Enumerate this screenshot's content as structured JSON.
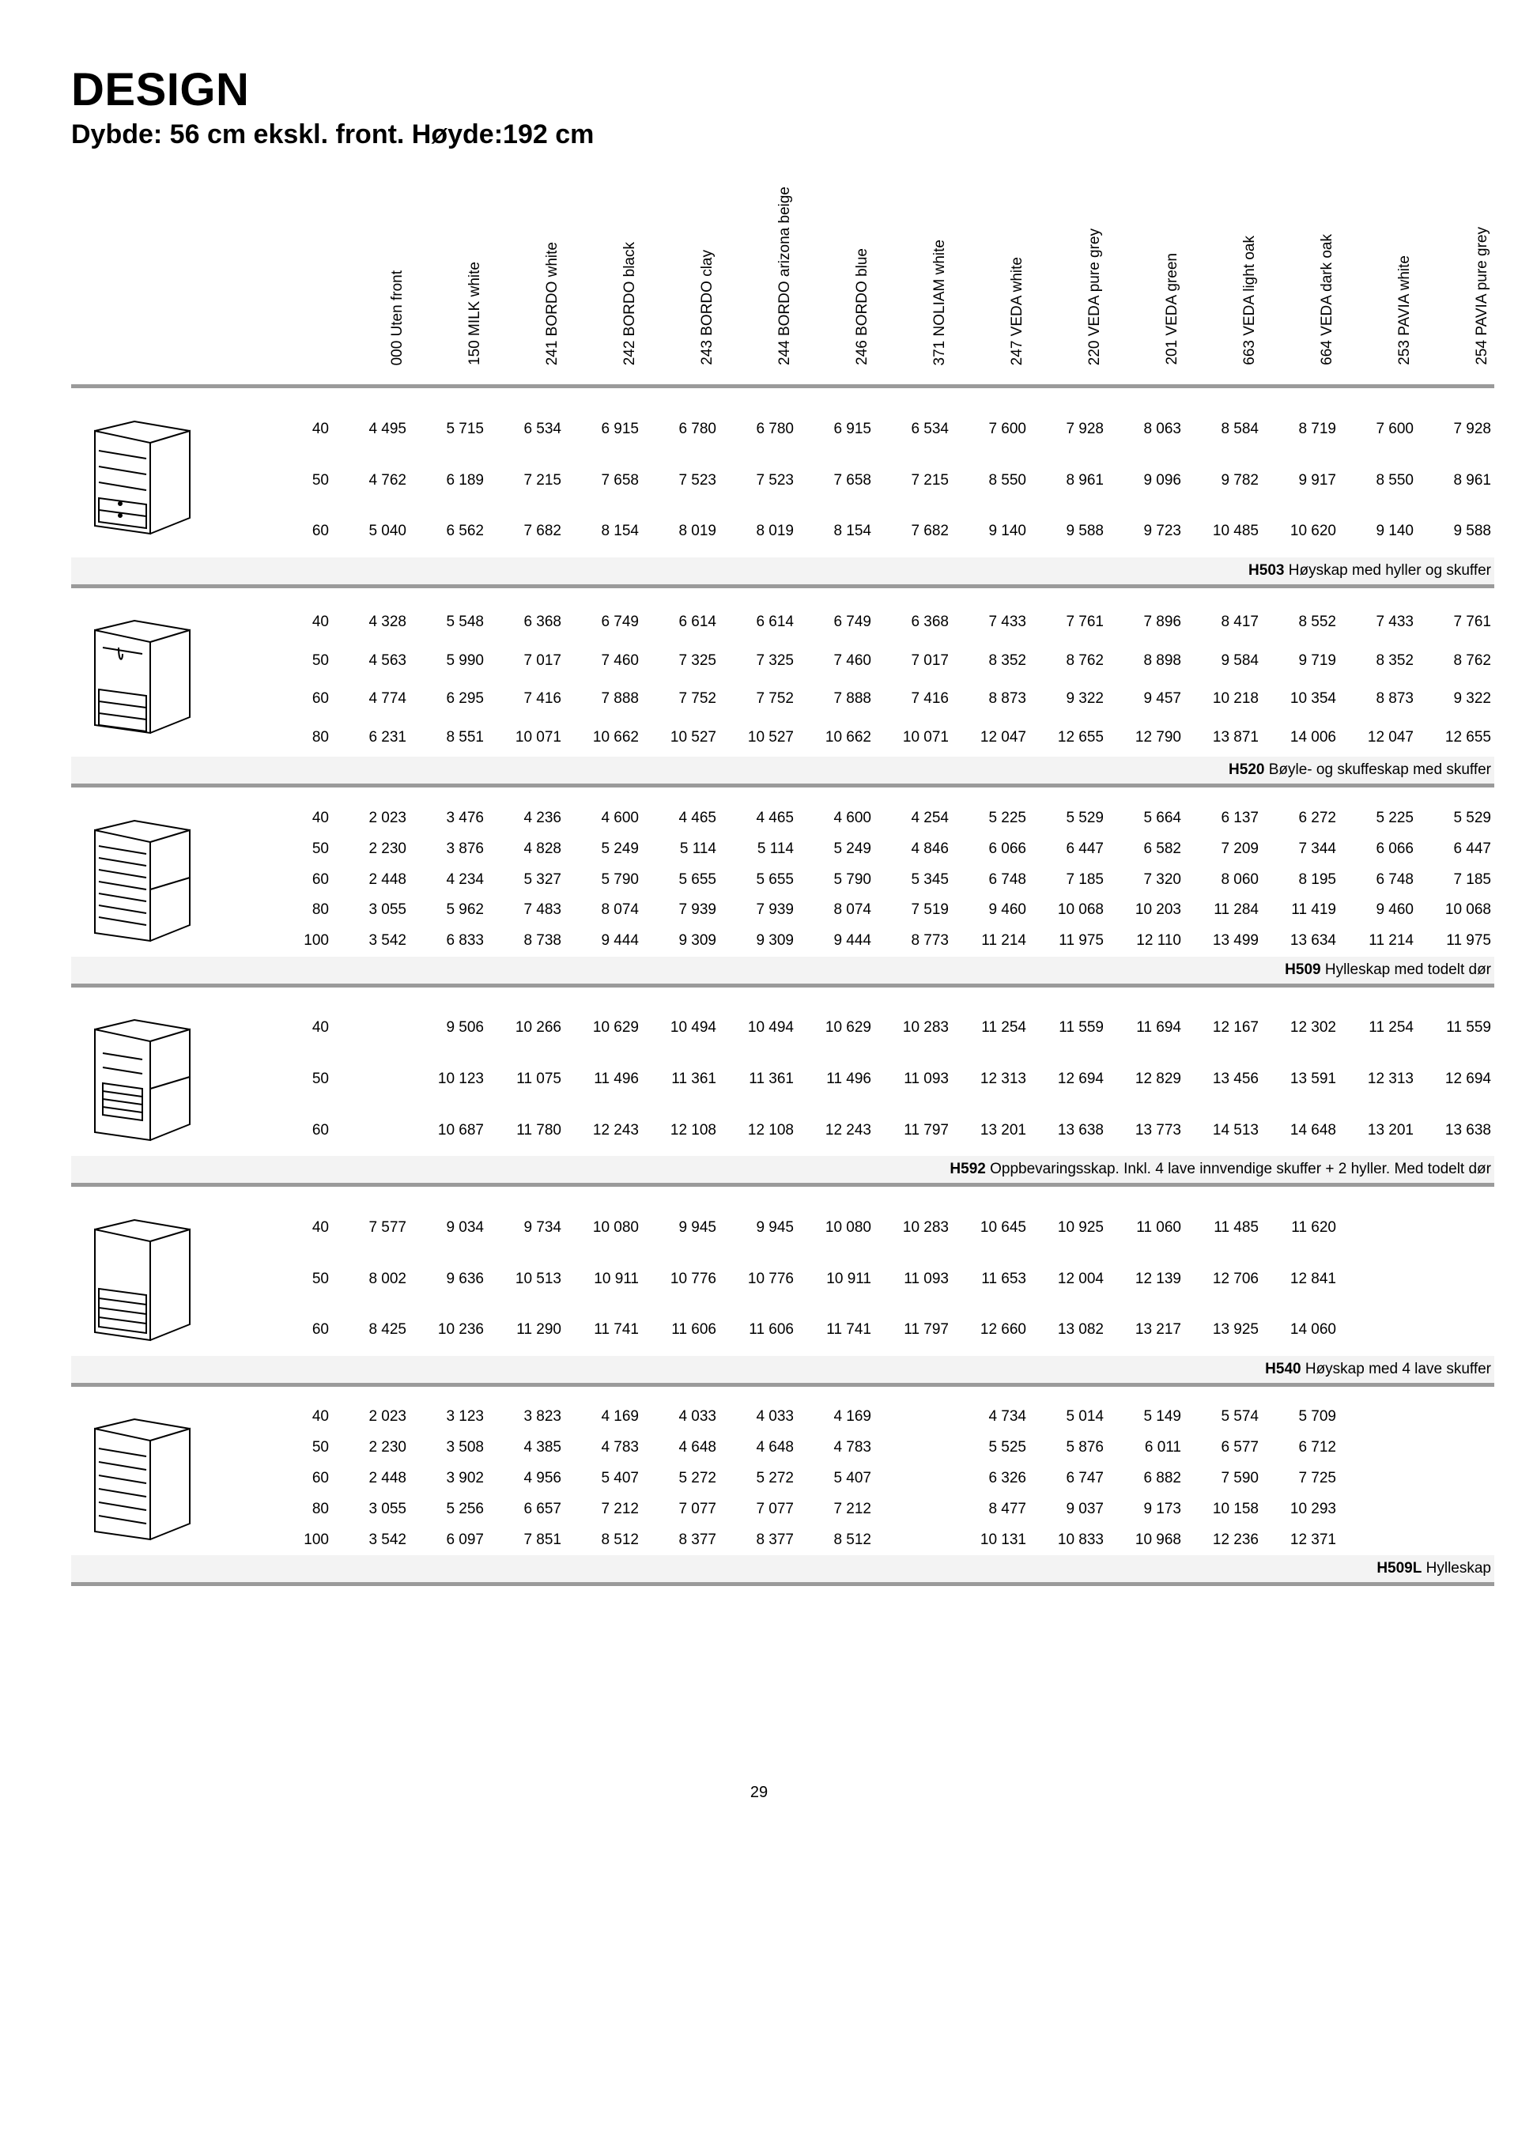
{
  "title": "DESIGN",
  "subtitle": "Dybde: 56 cm ekskl. front. Høyde:192 cm",
  "page_number": "29",
  "columns": [
    "000 Uten front",
    "150 MILK white",
    "241 BORDO white",
    "242 BORDO black",
    "243 BORDO clay",
    "244 BORDO\narizona beige",
    "246 BORDO blue",
    "371 NOLIAM white",
    "247 VEDA white",
    "220 VEDA pure grey",
    "201 VEDA green",
    "663 VEDA light oak",
    "664 VEDA dark oak",
    "253 PAVIA white",
    "254 PAVIA pure grey"
  ],
  "sections": [
    {
      "code": "H503",
      "desc": "Høyskap med hyller og skuffer",
      "icon": "h503",
      "rows": [
        {
          "s": "40",
          "v": [
            "4 495",
            "5 715",
            "6 534",
            "6 915",
            "6 780",
            "6 780",
            "6 915",
            "6 534",
            "7 600",
            "7 928",
            "8 063",
            "8 584",
            "8 719",
            "7 600",
            "7 928"
          ]
        },
        {
          "s": "50",
          "v": [
            "4 762",
            "6 189",
            "7 215",
            "7 658",
            "7 523",
            "7 523",
            "7 658",
            "7 215",
            "8 550",
            "8 961",
            "9 096",
            "9 782",
            "9 917",
            "8 550",
            "8 961"
          ]
        },
        {
          "s": "60",
          "v": [
            "5 040",
            "6 562",
            "7 682",
            "8 154",
            "8 019",
            "8 019",
            "8 154",
            "7 682",
            "9 140",
            "9 588",
            "9 723",
            "10 485",
            "10 620",
            "9 140",
            "9 588"
          ]
        }
      ]
    },
    {
      "code": "H520",
      "desc": "Bøyle- og skuffeskap med skuffer",
      "icon": "h520",
      "rows": [
        {
          "s": "40",
          "v": [
            "4 328",
            "5 548",
            "6 368",
            "6 749",
            "6 614",
            "6 614",
            "6 749",
            "6 368",
            "7 433",
            "7 761",
            "7 896",
            "8 417",
            "8 552",
            "7 433",
            "7 761"
          ]
        },
        {
          "s": "50",
          "v": [
            "4 563",
            "5 990",
            "7 017",
            "7 460",
            "7 325",
            "7 325",
            "7 460",
            "7 017",
            "8 352",
            "8 762",
            "8 898",
            "9 584",
            "9 719",
            "8 352",
            "8 762"
          ]
        },
        {
          "s": "60",
          "v": [
            "4 774",
            "6 295",
            "7 416",
            "7 888",
            "7 752",
            "7 752",
            "7 888",
            "7 416",
            "8 873",
            "9 322",
            "9 457",
            "10 218",
            "10 354",
            "8 873",
            "9 322"
          ]
        },
        {
          "s": "80",
          "v": [
            "6 231",
            "8 551",
            "10 071",
            "10 662",
            "10 527",
            "10 527",
            "10 662",
            "10 071",
            "12 047",
            "12 655",
            "12 790",
            "13 871",
            "14 006",
            "12 047",
            "12 655"
          ]
        }
      ]
    },
    {
      "code": "H509",
      "desc": "Hylleskap med todelt dør",
      "icon": "h509",
      "rows": [
        {
          "s": "40",
          "v": [
            "2 023",
            "3 476",
            "4 236",
            "4 600",
            "4 465",
            "4 465",
            "4 600",
            "4 254",
            "5 225",
            "5 529",
            "5 664",
            "6 137",
            "6 272",
            "5 225",
            "5 529"
          ]
        },
        {
          "s": "50",
          "v": [
            "2 230",
            "3 876",
            "4 828",
            "5 249",
            "5 114",
            "5 114",
            "5 249",
            "4 846",
            "6 066",
            "6 447",
            "6 582",
            "7 209",
            "7 344",
            "6 066",
            "6 447"
          ]
        },
        {
          "s": "60",
          "v": [
            "2 448",
            "4 234",
            "5 327",
            "5 790",
            "5 655",
            "5 655",
            "5 790",
            "5 345",
            "6 748",
            "7 185",
            "7 320",
            "8 060",
            "8 195",
            "6 748",
            "7 185"
          ]
        },
        {
          "s": "80",
          "v": [
            "3 055",
            "5 962",
            "7 483",
            "8 074",
            "7 939",
            "7 939",
            "8 074",
            "7 519",
            "9 460",
            "10 068",
            "10 203",
            "11 284",
            "11 419",
            "9 460",
            "10 068"
          ]
        },
        {
          "s": "100",
          "v": [
            "3 542",
            "6 833",
            "8 738",
            "9 444",
            "9 309",
            "9 309",
            "9 444",
            "8 773",
            "11 214",
            "11 975",
            "12 110",
            "13 499",
            "13 634",
            "11 214",
            "11 975"
          ]
        }
      ]
    },
    {
      "code": "H592",
      "desc": "Oppbevaringsskap. Inkl. 4 lave innvendige skuffer + 2 hyller. Med todelt dør",
      "icon": "h592",
      "rows": [
        {
          "s": "40",
          "v": [
            "",
            "9 506",
            "10 266",
            "10 629",
            "10 494",
            "10 494",
            "10 629",
            "10 283",
            "11 254",
            "11 559",
            "11 694",
            "12 167",
            "12 302",
            "11 254",
            "11 559"
          ]
        },
        {
          "s": "50",
          "v": [
            "",
            "10 123",
            "11 075",
            "11 496",
            "11 361",
            "11 361",
            "11 496",
            "11 093",
            "12 313",
            "12 694",
            "12 829",
            "13 456",
            "13 591",
            "12 313",
            "12 694"
          ]
        },
        {
          "s": "60",
          "v": [
            "",
            "10 687",
            "11 780",
            "12 243",
            "12 108",
            "12 108",
            "12 243",
            "11 797",
            "13 201",
            "13 638",
            "13 773",
            "14 513",
            "14 648",
            "13 201",
            "13 638"
          ]
        }
      ]
    },
    {
      "code": "H540",
      "desc": "Høyskap med 4 lave skuffer",
      "icon": "h540",
      "rows": [
        {
          "s": "40",
          "v": [
            "7 577",
            "9 034",
            "9 734",
            "10 080",
            "9 945",
            "9 945",
            "10 080",
            "10 283",
            "10 645",
            "10 925",
            "11 060",
            "11 485",
            "11 620",
            "",
            ""
          ]
        },
        {
          "s": "50",
          "v": [
            "8 002",
            "9 636",
            "10 513",
            "10 911",
            "10 776",
            "10 776",
            "10 911",
            "11 093",
            "11 653",
            "12 004",
            "12 139",
            "12 706",
            "12 841",
            "",
            ""
          ]
        },
        {
          "s": "60",
          "v": [
            "8 425",
            "10 236",
            "11 290",
            "11 741",
            "11 606",
            "11 606",
            "11 741",
            "11 797",
            "12 660",
            "13 082",
            "13 217",
            "13 925",
            "14 060",
            "",
            ""
          ]
        }
      ]
    },
    {
      "code": "H509L",
      "desc": "Hylleskap",
      "icon": "h509l",
      "rows": [
        {
          "s": "40",
          "v": [
            "2 023",
            "3 123",
            "3 823",
            "4 169",
            "4 033",
            "4 033",
            "4 169",
            "",
            "4 734",
            "5 014",
            "5 149",
            "5 574",
            "5 709",
            "",
            ""
          ]
        },
        {
          "s": "50",
          "v": [
            "2 230",
            "3 508",
            "4 385",
            "4 783",
            "4 648",
            "4 648",
            "4 783",
            "",
            "5 525",
            "5 876",
            "6 011",
            "6 577",
            "6 712",
            "",
            ""
          ]
        },
        {
          "s": "60",
          "v": [
            "2 448",
            "3 902",
            "4 956",
            "5 407",
            "5 272",
            "5 272",
            "5 407",
            "",
            "6 326",
            "6 747",
            "6 882",
            "7 590",
            "7 725",
            "",
            ""
          ]
        },
        {
          "s": "80",
          "v": [
            "3 055",
            "5 256",
            "6 657",
            "7 212",
            "7 077",
            "7 077",
            "7 212",
            "",
            "8 477",
            "9 037",
            "9 173",
            "10 158",
            "10 293",
            "",
            ""
          ]
        },
        {
          "s": "100",
          "v": [
            "3 542",
            "6 097",
            "7 851",
            "8 512",
            "8 377",
            "8 377",
            "8 512",
            "",
            "10 131",
            "10 833",
            "10 968",
            "12 236",
            "12 371",
            "",
            ""
          ]
        }
      ]
    }
  ]
}
